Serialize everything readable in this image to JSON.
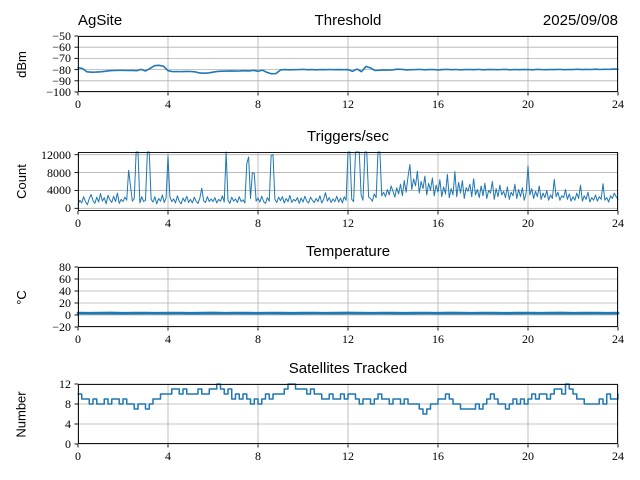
{
  "figure": {
    "background": "#ffffff",
    "line_color": "#1f77b4",
    "grid_color": "#b0b0b0",
    "spine_color": "#000000",
    "text_color": "#000000"
  },
  "chart_data": [
    {
      "type": "line",
      "title": "Threshold",
      "title_left": "AgSite",
      "title_right": "2025/09/08",
      "ylabel": "dBm",
      "xlabel": "",
      "grid": true,
      "legend": null,
      "xlim": [
        0,
        24
      ],
      "ylim": [
        -100,
        -50
      ],
      "xticks": [
        0,
        4,
        8,
        12,
        16,
        20,
        24
      ],
      "yticks": [
        -50,
        -60,
        -70,
        -80,
        -90,
        -100
      ],
      "x_range": [
        0,
        24
      ],
      "values": [
        -78.3,
        -79.0,
        -82.0,
        -82.3,
        -82.2,
        -82.0,
        -81.5,
        -81.0,
        -80.8,
        -80.7,
        -80.6,
        -80.8,
        -80.6,
        -81.0,
        -79.8,
        -81.2,
        -79.0,
        -76.5,
        -76.2,
        -77.0,
        -81.0,
        -81.8,
        -81.7,
        -81.8,
        -81.6,
        -81.7,
        -82.0,
        -83.0,
        -83.2,
        -83.0,
        -82.3,
        -81.6,
        -81.4,
        -81.3,
        -81.2,
        -81.3,
        -81.2,
        -81.0,
        -81.2,
        -80.7,
        -81.5,
        -80.5,
        -82.5,
        -83.7,
        -83.5,
        -80.3,
        -80.0,
        -80.2,
        -80.1,
        -80.0,
        -79.8,
        -80.1,
        -80.0,
        -80.2,
        -80.0,
        -80.1,
        -79.9,
        -80.1,
        -80.0,
        -80.1,
        -80.0,
        -81.5,
        -79.5,
        -81.8,
        -77.2,
        -78.5,
        -80.8,
        -80.5,
        -80.3,
        -80.4,
        -80.2,
        -79.6,
        -79.8,
        -80.3,
        -80.1,
        -80.0,
        -79.8,
        -80.2,
        -80.0,
        -79.9,
        -80.3,
        -80.0,
        -79.8,
        -80.1,
        -79.9,
        -80.2,
        -80.0,
        -79.9,
        -80.1,
        -79.8,
        -80.2,
        -80.0,
        -79.9,
        -80.1,
        -80.0,
        -79.8,
        -80.2,
        -79.9,
        -80.1,
        -80.0,
        -79.9,
        -80.2,
        -79.8,
        -80.0,
        -80.1,
        -79.9,
        -80.0,
        -79.8,
        -80.1,
        -79.9,
        -80.0,
        -79.7,
        -80.0,
        -79.8,
        -79.9,
        -79.6,
        -79.9,
        -79.7,
        -79.8,
        -79.5,
        -79.7
      ]
    },
    {
      "type": "line",
      "title": "Triggers/sec",
      "ylabel": "Count",
      "xlabel": "",
      "grid": true,
      "legend": null,
      "xlim": [
        0,
        24
      ],
      "ylim": [
        -600,
        12600
      ],
      "xticks": [
        0,
        4,
        8,
        12,
        16,
        20,
        24
      ],
      "yticks": [
        0,
        4000,
        8000,
        12000
      ],
      "x_range": [
        0,
        24
      ],
      "values": [
        900,
        1800,
        1200,
        2600,
        1500,
        800,
        2200,
        3100,
        1700,
        1100,
        2500,
        1400,
        3300,
        1600,
        2400,
        1000,
        2900,
        1900,
        1300,
        2700,
        1500,
        3400,
        1100,
        2000,
        1500,
        2500,
        1800,
        8500,
        5000,
        1600,
        2200,
        12600,
        12600,
        1200,
        2600,
        1500,
        1800,
        12600,
        12600,
        2000,
        1400,
        2600,
        1000,
        2200,
        1600,
        3000,
        1300,
        2400,
        11800,
        2600,
        1500,
        2100,
        1200,
        2800,
        1600,
        1000,
        2300,
        1500,
        2700,
        1300,
        2000,
        1200,
        2500,
        1600,
        1100,
        2300,
        4500,
        1700,
        1300,
        2600,
        1500,
        2100,
        1500,
        2400,
        1200,
        2000,
        1600,
        2800,
        1400,
        12600,
        1800,
        1100,
        2500,
        1600,
        2100,
        1300,
        2600,
        1500,
        1900,
        1200,
        10000,
        11500,
        2200,
        8000,
        7800,
        1600,
        2300,
        1400,
        2700,
        1500,
        1100,
        2400,
        1600,
        11800,
        12000,
        2000,
        1300,
        2500,
        1700,
        2600,
        1200,
        2200,
        1500,
        2900,
        1300,
        2000,
        1600,
        2400,
        1100,
        2300,
        1400,
        2700,
        1600,
        1200,
        2500,
        1800,
        1300,
        2200,
        1500,
        2800,
        1200,
        2000,
        3500,
        1600,
        2400,
        1300,
        2100,
        1500,
        2700,
        1400,
        2300,
        1200,
        2600,
        1800,
        12600,
        12600,
        2000,
        1500,
        12600,
        12600,
        12600,
        3000,
        1800,
        12600,
        12600,
        2500,
        2200,
        1600,
        3200,
        2400,
        12600,
        12600,
        2800,
        3600,
        2600,
        4200,
        3000,
        5000,
        3800,
        2500,
        4600,
        3200,
        5400,
        2800,
        6200,
        3600,
        7000,
        9800,
        4200,
        6600,
        5000,
        8300,
        3400,
        6000,
        4400,
        7200,
        3000,
        5600,
        4000,
        6800,
        2800,
        5200,
        3600,
        6400,
        2600,
        4800,
        3200,
        7600,
        2400,
        4400,
        3000,
        8200,
        2600,
        5800,
        3400,
        6200,
        2200,
        4600,
        3800,
        5400,
        2600,
        6600,
        3000,
        4200,
        2400,
        5000,
        2800,
        5600,
        2200,
        4000,
        3400,
        6000,
        2000,
        4400,
        2600,
        5200,
        3000,
        3800,
        2400,
        4800,
        2000,
        3600,
        2800,
        5400,
        2200,
        4200,
        2600,
        4600,
        1800,
        3400,
        9500,
        3000,
        4400,
        2200,
        3800,
        2600,
        5000,
        2000,
        3400,
        2400,
        4000,
        1800,
        3000,
        2200,
        6500,
        2600,
        3600,
        1800,
        2800,
        2400,
        4200,
        2000,
        3200,
        1600,
        2600,
        1800,
        3400,
        2200,
        5200,
        1600,
        2800,
        2000,
        3600,
        1400,
        2400,
        1800,
        3000,
        1600,
        2600,
        2000,
        5500,
        1800,
        2400,
        1400,
        2800,
        2200,
        3400,
        2600,
        2000
      ]
    },
    {
      "type": "line",
      "title": "Temperature",
      "ylabel": "°C",
      "xlabel": "",
      "grid": true,
      "legend": null,
      "xlim": [
        0,
        24
      ],
      "ylim": [
        -20,
        80
      ],
      "xticks": [
        0,
        4,
        8,
        12,
        16,
        20,
        24
      ],
      "yticks": [
        -20,
        0,
        20,
        40,
        60,
        80
      ],
      "x_range": [
        0,
        24
      ],
      "values": [
        3.1,
        2.9,
        3.0,
        3.2,
        2.8,
        3.0,
        3.1,
        2.9,
        3.0,
        3.1,
        2.8,
        3.0,
        3.2,
        2.9,
        3.1,
        3.0,
        2.9,
        3.1,
        3.0,
        2.8,
        3.0,
        3.1,
        2.9,
        3.0,
        3.2,
        3.0,
        2.9,
        3.1,
        3.0,
        2.8,
        3.0,
        3.1,
        2.9,
        3.2,
        3.0,
        2.9,
        3.1,
        3.0,
        2.8,
        3.0,
        3.1,
        2.9,
        3.0,
        3.2,
        2.9,
        3.0,
        3.1,
        2.9,
        3.0
      ]
    },
    {
      "type": "line",
      "title": "Satellites Tracked",
      "ylabel": "Number",
      "xlabel": "",
      "grid": true,
      "legend": null,
      "draw_style": "steps",
      "xlim": [
        0,
        24
      ],
      "ylim": [
        0,
        12
      ],
      "xticks": [
        0,
        4,
        8,
        12,
        16,
        20,
        24
      ],
      "yticks": [
        0,
        4,
        8,
        12
      ],
      "x_range": [
        0,
        24
      ],
      "values": [
        10,
        9,
        9,
        8,
        9,
        8,
        8,
        9,
        8,
        9,
        9,
        8,
        9,
        8,
        8,
        7,
        8,
        8,
        7,
        8,
        9,
        9,
        10,
        10,
        10,
        11,
        11,
        10,
        11,
        10,
        10,
        10,
        11,
        10,
        10,
        11,
        11,
        12,
        11,
        10,
        11,
        9,
        10,
        9,
        10,
        9,
        8,
        9,
        8,
        9,
        10,
        9,
        10,
        10,
        10,
        11,
        12,
        12,
        11,
        11,
        11,
        10,
        11,
        10,
        10,
        9,
        9,
        10,
        9,
        9,
        10,
        9,
        10,
        10,
        9,
        8,
        9,
        9,
        8,
        9,
        10,
        9,
        9,
        8,
        9,
        9,
        8,
        9,
        8,
        8,
        8,
        7,
        6,
        7,
        8,
        8,
        9,
        9,
        10,
        9,
        8,
        8,
        7,
        7,
        7,
        7,
        8,
        7,
        8,
        9,
        10,
        9,
        8,
        8,
        7,
        8,
        9,
        8,
        9,
        8,
        9,
        10,
        9,
        10,
        10,
        9,
        10,
        11,
        11,
        10,
        12,
        11,
        10,
        9,
        9,
        8,
        8,
        8,
        8,
        9,
        8,
        10,
        9,
        9,
        10
      ]
    }
  ]
}
